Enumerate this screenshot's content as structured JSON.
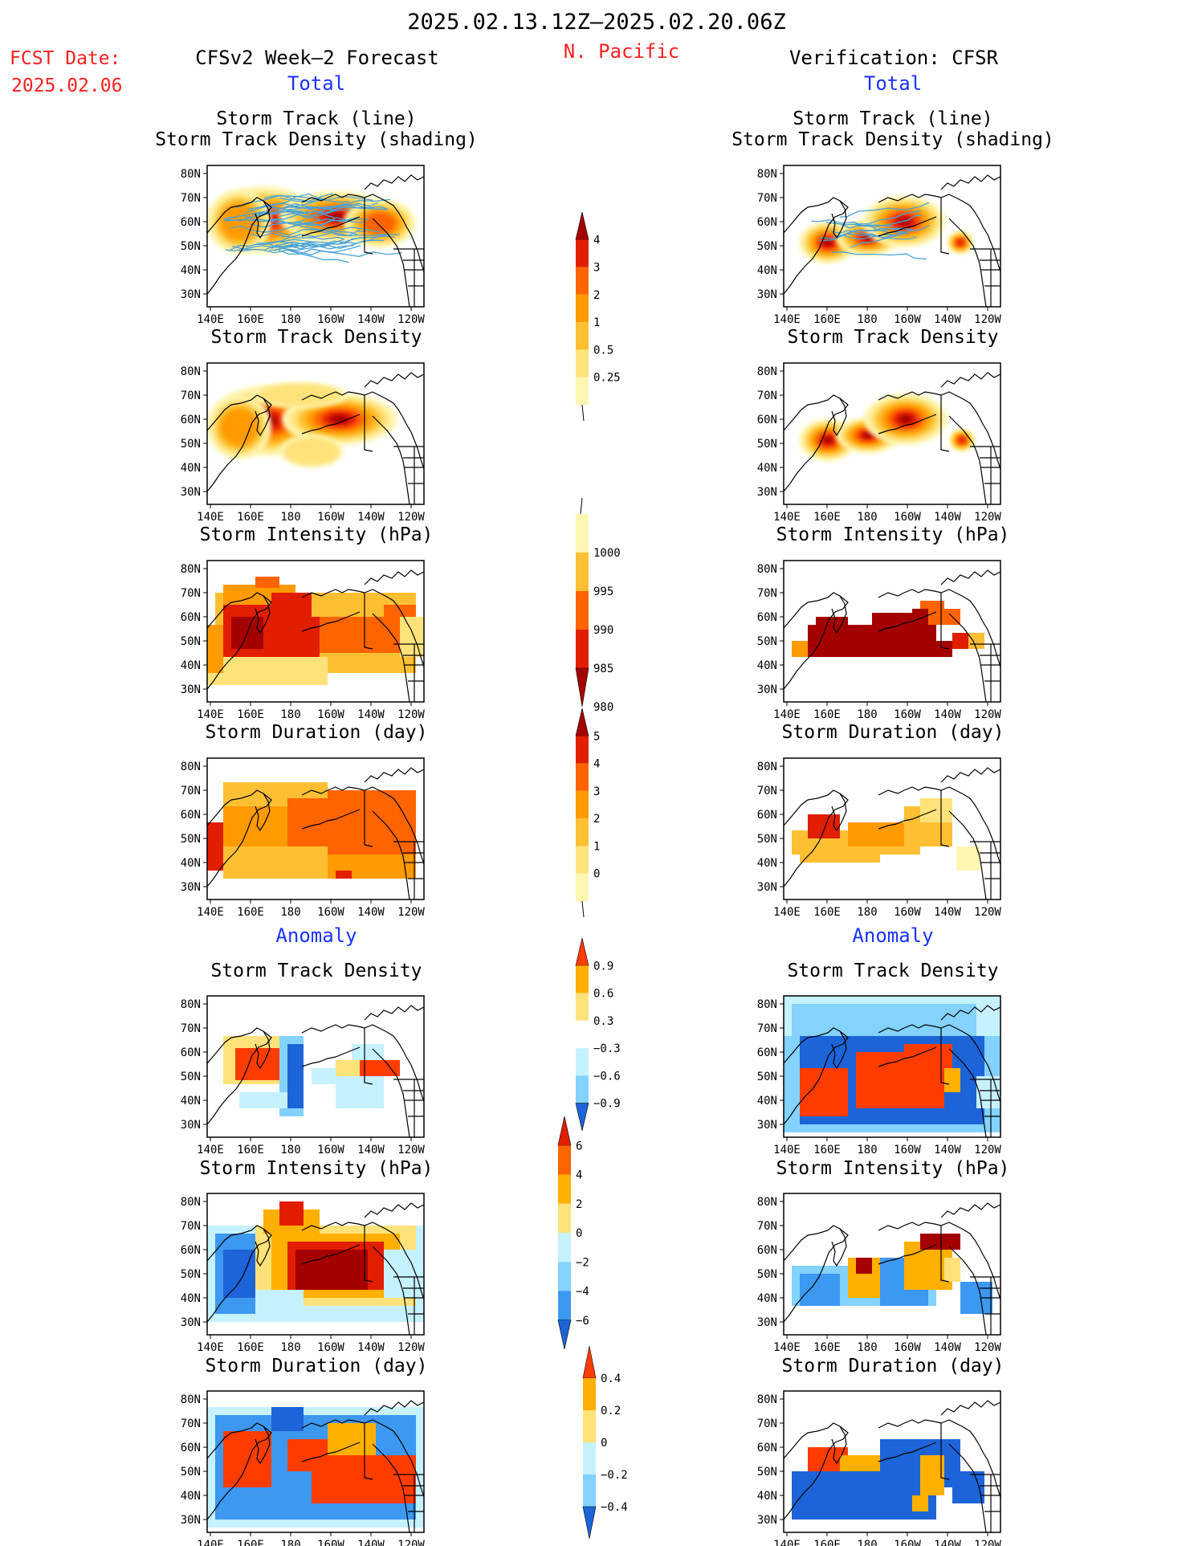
{
  "header": {
    "period": "2025.02.13.12Z–2025.02.20.06Z",
    "fcst_label": "FCST Date:",
    "fcst_date": "2025.02.06",
    "left_title": "CFSv2 Week–2 Forecast",
    "region": "N. Pacific",
    "right_title": "Verification: CFSR",
    "total_label": "Total",
    "anomaly_label": "Anomaly"
  },
  "panel_titles": {
    "track_line": "Storm Track (line)",
    "track_shading": "Storm Track Density (shading)",
    "density": "Storm Track Density",
    "intensity": "Storm Intensity (hPa)",
    "duration": "Storm Duration (day)"
  },
  "axes": {
    "lat_labels": [
      "80N",
      "70N",
      "60N",
      "50N",
      "40N",
      "30N"
    ],
    "lon_labels": [
      "140E",
      "160E",
      "180",
      "160W",
      "140W",
      "120W"
    ]
  },
  "colors": {
    "warm": [
      "#fff6b4",
      "#ffe27a",
      "#ffbf33",
      "#ff9b00",
      "#ff6400",
      "#e21e00",
      "#a50000"
    ],
    "cool": [
      "#c6f1ff",
      "#83d2ff",
      "#3c98f0",
      "#1d64d8"
    ],
    "anom_warm": [
      "#ffe27a",
      "#ffb000",
      "#ff3c00"
    ],
    "track_line": "#4aa3d8"
  },
  "colorbars": [
    {
      "id": "density",
      "labels": [
        "4",
        "3",
        "2",
        "1",
        "0.5",
        "0.25"
      ],
      "colors": [
        "#a50000",
        "#e21e00",
        "#ff6400",
        "#ff9b00",
        "#ffbf33",
        "#ffe27a",
        "#fff6b4"
      ],
      "top_tri": true,
      "bottom_tri": false
    },
    {
      "id": "intensity",
      "labels": [
        "1000",
        "995",
        "990",
        "985",
        "980"
      ],
      "colors": [
        "#fff6b4",
        "#ffbf33",
        "#ff6400",
        "#e21e00",
        "#a50000"
      ],
      "top_tri": false,
      "bottom_tri": true
    },
    {
      "id": "duration",
      "labels": [
        "5",
        "4",
        "3",
        "2",
        "1",
        "0"
      ],
      "colors": [
        "#a50000",
        "#e21e00",
        "#ff6400",
        "#ff9b00",
        "#ffbf33",
        "#ffe27a",
        "#fff6b4"
      ],
      "top_tri": true,
      "bottom_tri": false
    },
    {
      "id": "anom_density",
      "labels": [
        "0.9",
        "0.6",
        "0.3",
        "−0.3",
        "−0.6",
        "−0.9"
      ],
      "colors": [
        "#ff3c00",
        "#ffb000",
        "#ffe27a",
        "#ffffff",
        "#c6f1ff",
        "#83d2ff",
        "#1d64d8"
      ],
      "top_tri": true,
      "bottom_tri": true
    },
    {
      "id": "anom_intensity",
      "labels": [
        "6",
        "4",
        "2",
        "0",
        "−2",
        "−4",
        "−6"
      ],
      "colors": [
        "#e21e00",
        "#ff6400",
        "#ffb000",
        "#ffe27a",
        "#c6f1ff",
        "#83d2ff",
        "#3c98f0",
        "#1d64d8"
      ],
      "top_tri": true,
      "bottom_tri": true
    },
    {
      "id": "anom_duration",
      "labels": [
        "0.4",
        "0.2",
        "0",
        "−0.2",
        "−0.4"
      ],
      "colors": [
        "#ff3c00",
        "#ffb000",
        "#ffe27a",
        "#c6f1ff",
        "#83d2ff",
        "#1d64d8"
      ],
      "top_tri": true,
      "bottom_tri": true
    }
  ]
}
